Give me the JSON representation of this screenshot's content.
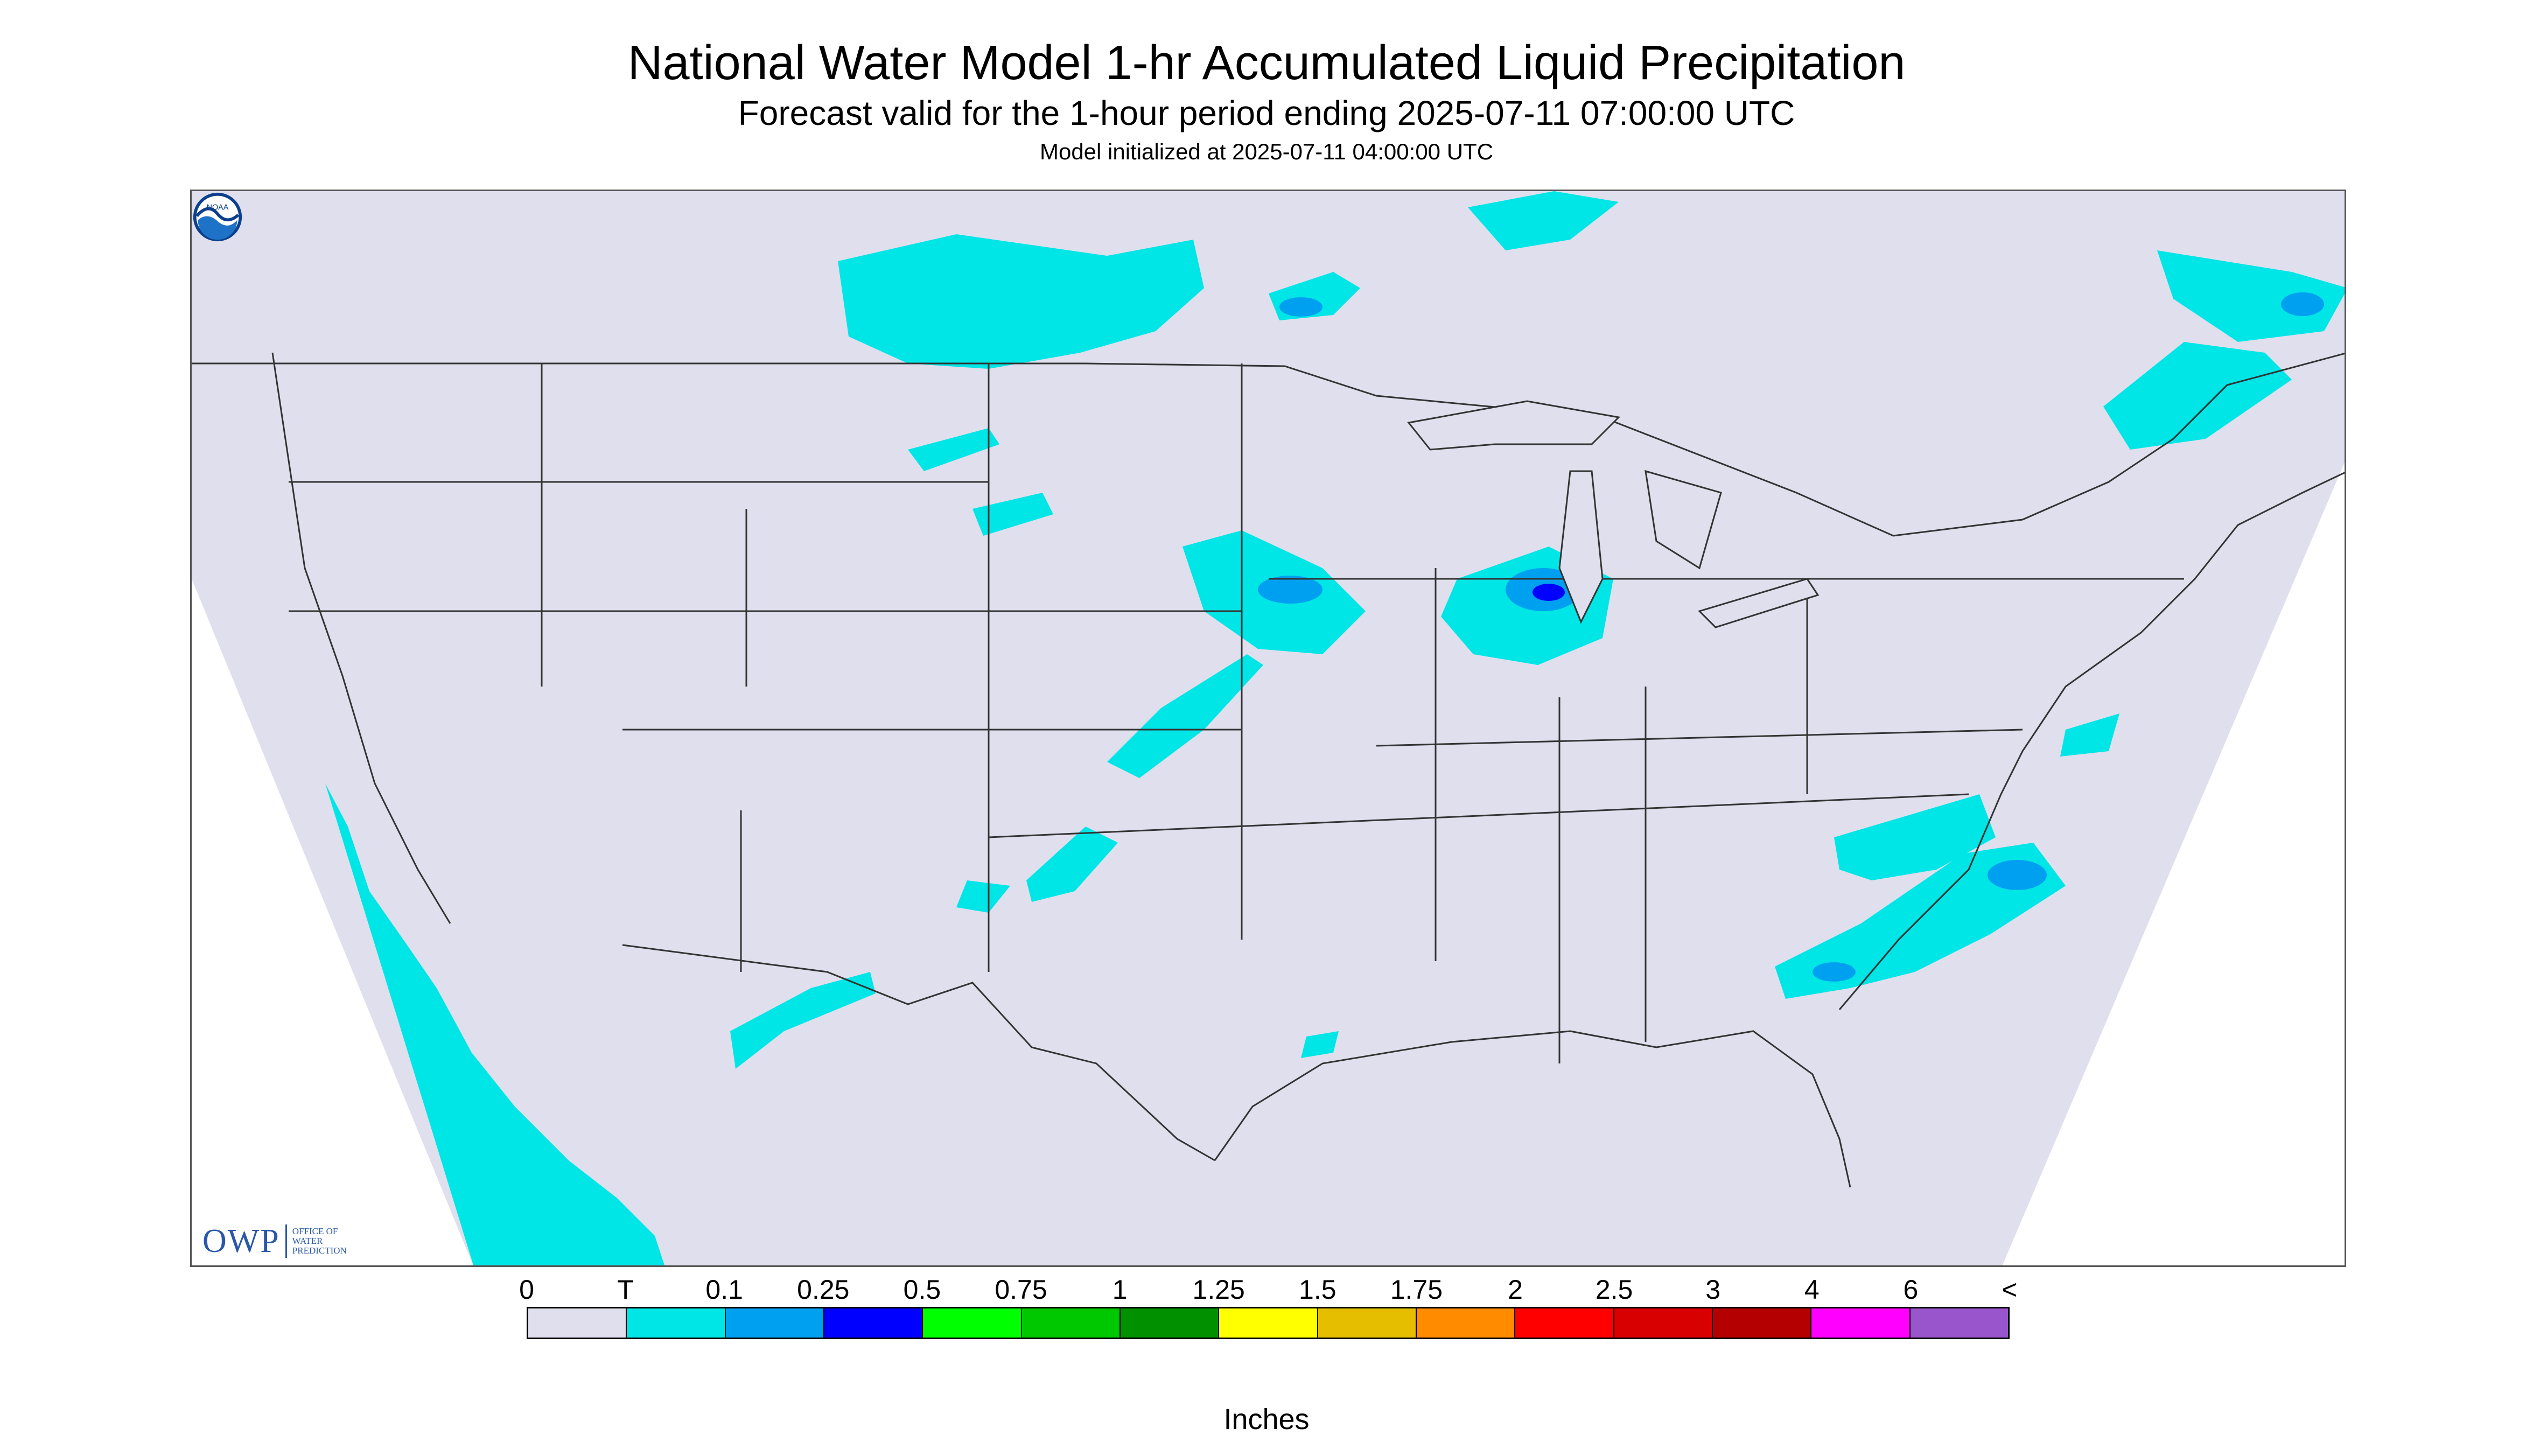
{
  "title": "National Water Model 1-hr Accumulated Liquid Precipitation",
  "subtitle": "Forecast valid for the 1-hour period ending 2025-07-11 07:00:00 UTC",
  "initialized": "Model initialized at 2025-07-11 04:00:00 UTC",
  "map": {
    "background_color": "#dfdfee",
    "no_data_color": "#ffffff",
    "boundary_color": "#333333"
  },
  "logos": {
    "owp_mark": "OWP",
    "owp_text": [
      "OFFICE OF",
      "WATER",
      "PREDICTION"
    ],
    "noaa_icon": "noaa-logo-icon",
    "noaa_text": "NOAA"
  },
  "legend": {
    "units": "Inches",
    "labels": [
      "0",
      "T",
      "0.1",
      "0.25",
      "0.5",
      "0.75",
      "1",
      "1.25",
      "1.5",
      "1.75",
      "2",
      "2.5",
      "3",
      "4",
      "6",
      "<"
    ],
    "colors": [
      "#dfdfee",
      "#00e5e5",
      "#00a0f0",
      "#0000ff",
      "#00ff00",
      "#00c800",
      "#009000",
      "#ffff00",
      "#e6be00",
      "#ff8c00",
      "#ff0000",
      "#d80000",
      "#b40000",
      "#ff00ff",
      "#9955cc"
    ]
  }
}
